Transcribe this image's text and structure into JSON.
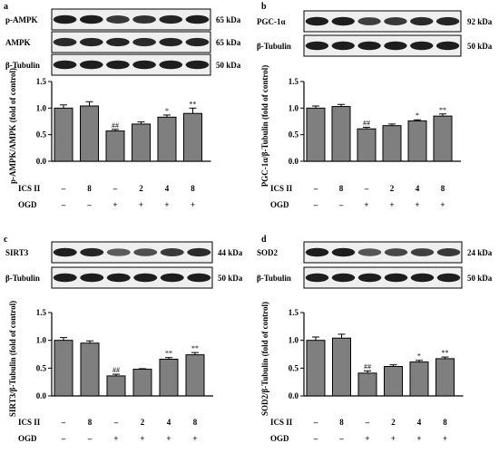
{
  "colors": {
    "bar": "#7f7f7f",
    "axis": "#000000",
    "blot_bg": "#efefef",
    "band": "#1e1e1e"
  },
  "chart_data": [
    {
      "panel": "a",
      "type": "bar",
      "categories": [
        "1",
        "2",
        "3",
        "4",
        "5",
        "6"
      ],
      "values": [
        1.0,
        1.04,
        0.57,
        0.7,
        0.83,
        0.9
      ],
      "errors": [
        0.06,
        0.08,
        0.03,
        0.04,
        0.04,
        0.1
      ],
      "annotations": [
        "",
        "",
        "##",
        "",
        "*",
        "**"
      ],
      "ylabel": "p-AMPK/AMPK (fold of control)",
      "ylim": [
        0,
        1.5
      ],
      "yticks": [
        "0.0",
        "0.5",
        "1.0",
        "1.5"
      ],
      "treatment_rows": [
        {
          "label": "ICS II",
          "values": [
            "–",
            "8",
            "–",
            "2",
            "4",
            "8"
          ]
        },
        {
          "label": "OGD",
          "values": [
            "–",
            "–",
            "+",
            "+",
            "+",
            "+"
          ]
        }
      ],
      "blots": [
        {
          "name": "p-AMPK",
          "size": "65 kDa",
          "intensity": [
            1.0,
            1.0,
            0.8,
            0.85,
            0.95,
            1.0
          ]
        },
        {
          "name": "AMPK",
          "size": "65 kDa",
          "intensity": [
            0.9,
            0.95,
            0.95,
            0.9,
            0.95,
            0.95
          ]
        },
        {
          "name": "β-Tubulin",
          "size": "50 kDa",
          "intensity": [
            1.0,
            1.0,
            1.0,
            1.0,
            1.0,
            1.0
          ]
        }
      ]
    },
    {
      "panel": "b",
      "type": "bar",
      "categories": [
        "1",
        "2",
        "3",
        "4",
        "5",
        "6"
      ],
      "values": [
        1.0,
        1.03,
        0.61,
        0.67,
        0.76,
        0.85
      ],
      "errors": [
        0.04,
        0.04,
        0.03,
        0.03,
        0.02,
        0.04
      ],
      "annotations": [
        "",
        "",
        "##",
        "",
        "*",
        "**"
      ],
      "ylabel": "PGC-1α/β-Tubulin (fold of control)",
      "ylim": [
        0,
        1.5
      ],
      "yticks": [
        "0.0",
        "0.5",
        "1.0",
        "1.5"
      ],
      "treatment_rows": [
        {
          "label": "ICS II",
          "values": [
            "–",
            "8",
            "–",
            "2",
            "4",
            "8"
          ]
        },
        {
          "label": "OGD",
          "values": [
            "–",
            "–",
            "+",
            "+",
            "+",
            "+"
          ]
        }
      ],
      "blots": [
        {
          "name": "PGC-1α",
          "size": "92 kDa",
          "intensity": [
            1.0,
            1.0,
            0.75,
            0.8,
            0.9,
            0.95
          ]
        },
        {
          "name": "β-Tubulin",
          "size": "50 kDa",
          "intensity": [
            1.0,
            1.0,
            1.0,
            1.0,
            1.0,
            1.0
          ]
        }
      ]
    },
    {
      "panel": "c",
      "type": "bar",
      "categories": [
        "1",
        "2",
        "3",
        "4",
        "5",
        "6"
      ],
      "values": [
        1.0,
        0.95,
        0.36,
        0.48,
        0.66,
        0.74
      ],
      "errors": [
        0.05,
        0.04,
        0.03,
        0.01,
        0.03,
        0.04
      ],
      "annotations": [
        "",
        "",
        "##",
        "",
        "**",
        "**"
      ],
      "ylabel": "SIRT3/β-Tubulin (fold of control)",
      "ylim": [
        0,
        1.5
      ],
      "yticks": [
        "0.0",
        "0.5",
        "1.0",
        "1.5"
      ],
      "treatment_rows": [
        {
          "label": "ICS II",
          "values": [
            "–",
            "8",
            "–",
            "2",
            "4",
            "8"
          ]
        },
        {
          "label": "OGD",
          "values": [
            "–",
            "–",
            "+",
            "+",
            "+",
            "+"
          ]
        }
      ],
      "blots": [
        {
          "name": "SIRT3",
          "size": "44 kDa",
          "intensity": [
            1.0,
            0.95,
            0.55,
            0.65,
            0.8,
            0.9
          ]
        },
        {
          "name": "β-Tubulin",
          "size": "50 kDa",
          "intensity": [
            1.0,
            1.0,
            1.0,
            1.0,
            1.0,
            1.0
          ]
        }
      ]
    },
    {
      "panel": "d",
      "type": "bar",
      "categories": [
        "1",
        "2",
        "3",
        "4",
        "5",
        "6"
      ],
      "values": [
        1.0,
        1.04,
        0.41,
        0.53,
        0.61,
        0.67
      ],
      "errors": [
        0.06,
        0.07,
        0.04,
        0.03,
        0.03,
        0.03
      ],
      "annotations": [
        "",
        "",
        "##",
        "",
        "*",
        "**"
      ],
      "ylabel": "SOD2/β-Tubulin (fold of control)",
      "ylim": [
        0,
        1.5
      ],
      "yticks": [
        "0.0",
        "0.5",
        "1.0",
        "1.5"
      ],
      "treatment_rows": [
        {
          "label": "ICS II",
          "values": [
            "–",
            "8",
            "–",
            "2",
            "4",
            "8"
          ]
        },
        {
          "label": "OGD",
          "values": [
            "–",
            "–",
            "+",
            "+",
            "+",
            "+"
          ]
        }
      ],
      "blots": [
        {
          "name": "SOD2",
          "size": "24 kDa",
          "intensity": [
            1.0,
            1.0,
            0.6,
            0.7,
            0.75,
            0.8
          ]
        },
        {
          "name": "β-Tubulin",
          "size": "50 kDa",
          "intensity": [
            1.0,
            1.0,
            1.0,
            1.0,
            1.0,
            1.0
          ]
        }
      ]
    }
  ]
}
